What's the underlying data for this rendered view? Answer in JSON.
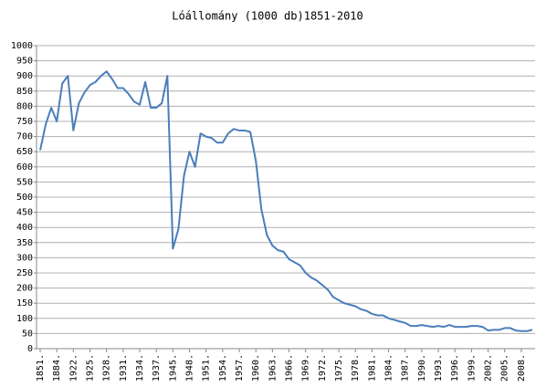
{
  "chart_data": {
    "type": "line",
    "title": "Lóállomány (1000 db)1851-2010",
    "categories": [
      "1851.",
      null,
      null,
      "1884.",
      null,
      null,
      "1922.",
      null,
      null,
      "1925.",
      null,
      null,
      "1928.",
      null,
      null,
      "1931.",
      null,
      null,
      "1934.",
      null,
      null,
      "1937.",
      null,
      null,
      "1945.",
      null,
      null,
      "1948.",
      null,
      null,
      "1951.",
      null,
      null,
      "1954.",
      null,
      null,
      "1957.",
      null,
      null,
      "1960.",
      null,
      null,
      "1963.",
      null,
      null,
      "1966.",
      null,
      null,
      "1969.",
      null,
      null,
      "1972.",
      null,
      null,
      "1975.",
      null,
      null,
      "1978.",
      null,
      null,
      "1981.",
      null,
      null,
      "1984.",
      null,
      null,
      "1987.",
      null,
      null,
      "1990.",
      null,
      null,
      "1993.",
      null,
      null,
      "1996.",
      null,
      null,
      "1999.",
      null,
      null,
      "2002.",
      null,
      null,
      "2005.",
      null,
      null,
      "2008.",
      null,
      null
    ],
    "values": [
      655,
      740,
      795,
      750,
      875,
      900,
      720,
      810,
      845,
      870,
      880,
      900,
      915,
      890,
      860,
      860,
      840,
      815,
      805,
      880,
      795,
      795,
      810,
      900,
      330,
      395,
      570,
      650,
      600,
      710,
      700,
      695,
      680,
      680,
      710,
      725,
      720,
      720,
      715,
      620,
      460,
      375,
      340,
      325,
      320,
      295,
      285,
      275,
      250,
      235,
      225,
      210,
      195,
      170,
      160,
      150,
      145,
      140,
      130,
      125,
      115,
      110,
      110,
      100,
      95,
      90,
      85,
      75,
      75,
      78,
      75,
      72,
      75,
      72,
      78,
      72,
      72,
      72,
      75,
      75,
      72,
      60,
      62,
      62,
      68,
      68,
      60,
      58,
      58,
      62
    ],
    "color": "#4a7ebb",
    "ylim": [
      0,
      1000
    ],
    "yticks": [
      0,
      50,
      100,
      150,
      200,
      250,
      300,
      350,
      400,
      450,
      500,
      550,
      600,
      650,
      700,
      750,
      800,
      850,
      900,
      950,
      1000
    ],
    "grid": true
  }
}
